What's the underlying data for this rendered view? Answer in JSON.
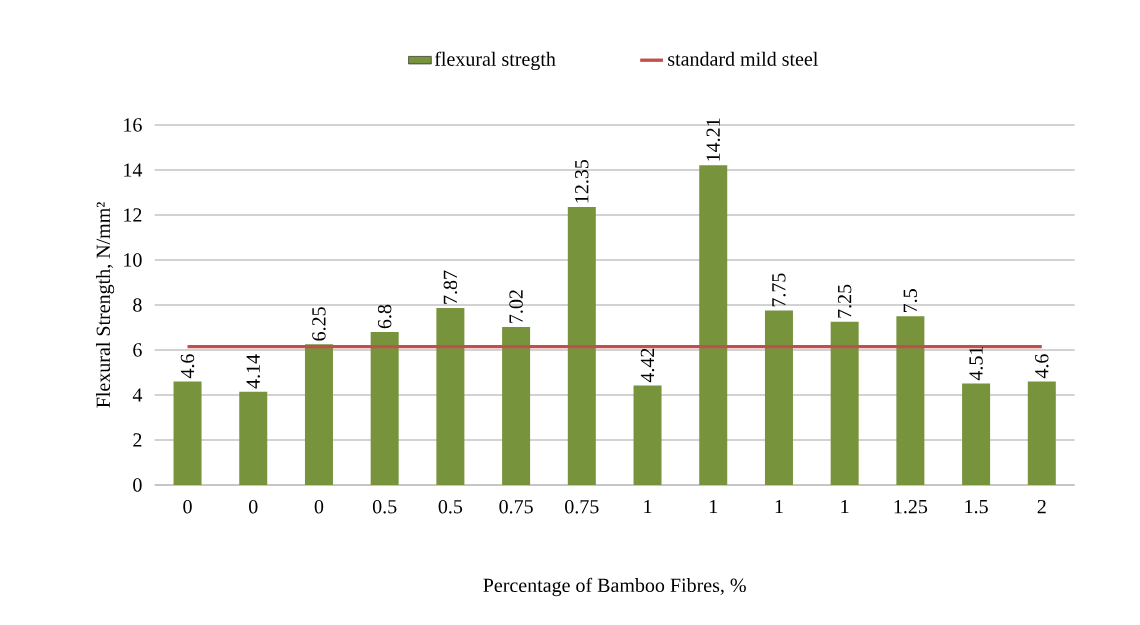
{
  "chart_data": {
    "type": "bar",
    "xlabel": "Percentage of Bamboo Fibres, %",
    "ylabel": "Flexural Strength, N/mm²",
    "categories": [
      "0",
      "0",
      "0",
      "0.5",
      "0.5",
      "0.75",
      "0.75",
      "1",
      "1",
      "1",
      "1",
      "1.25",
      "1.5",
      "2"
    ],
    "series": [
      {
        "name": "flexural stregth",
        "color": "#77933c",
        "values": [
          4.6,
          4.14,
          6.25,
          6.8,
          7.87,
          7.02,
          12.35,
          4.42,
          14.21,
          7.75,
          7.25,
          7.5,
          4.51,
          4.6
        ],
        "value_labels": [
          "4.6",
          "4.14",
          "6.25",
          "6.8",
          "7.87",
          "7.02",
          "12.35",
          "4.42",
          "14.21",
          "7.75",
          "7.25",
          "7.5",
          "4.51",
          "4.6"
        ]
      },
      {
        "name": "standard mild steel",
        "type": "line",
        "color": "#c0504d",
        "values": [
          6.15,
          6.15,
          6.15,
          6.15,
          6.15,
          6.15,
          6.15,
          6.15,
          6.15,
          6.15,
          6.15,
          6.15,
          6.15,
          6.15
        ]
      }
    ],
    "ylim": [
      0,
      16
    ],
    "yticks": [
      0,
      2,
      4,
      6,
      8,
      10,
      12,
      14,
      16
    ],
    "grid": "y",
    "legend": "top"
  }
}
